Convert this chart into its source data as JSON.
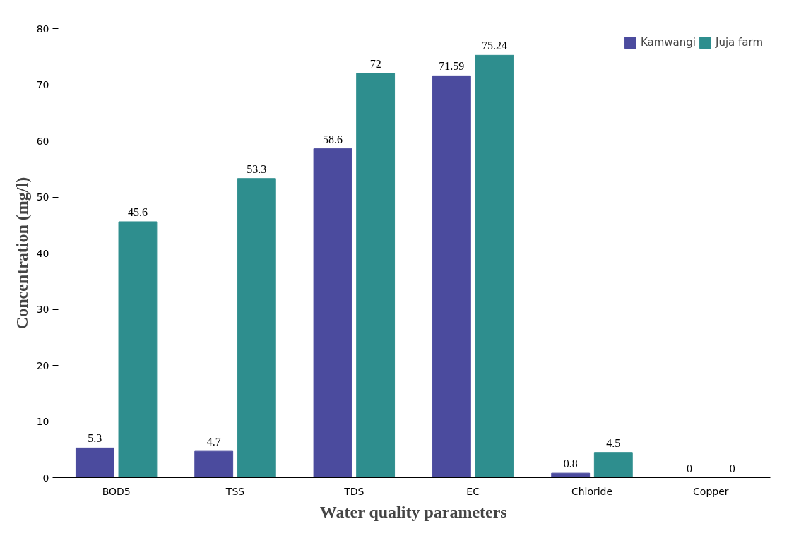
{
  "chart_data": {
    "type": "bar",
    "xlabel": "Water quality parameters",
    "ylabel": "Concentration (mg/l)",
    "categories": [
      "BOD5",
      "TSS",
      "TDS",
      "EC",
      "Chloride",
      "Copper"
    ],
    "series": [
      {
        "name": "Kamwangi",
        "color": "#4b4b9e",
        "values": [
          5.3,
          4.7,
          58.6,
          71.59,
          0.8,
          0
        ]
      },
      {
        "name": "Juja farm",
        "color": "#2e8e8e",
        "values": [
          45.6,
          53.3,
          72,
          75.24,
          4.5,
          0
        ]
      }
    ],
    "ylim": [
      0,
      80
    ],
    "yticks": [
      0,
      10,
      20,
      30,
      40,
      50,
      60,
      70,
      80
    ],
    "grid": false,
    "legend": "top right",
    "data_labels": true
  }
}
